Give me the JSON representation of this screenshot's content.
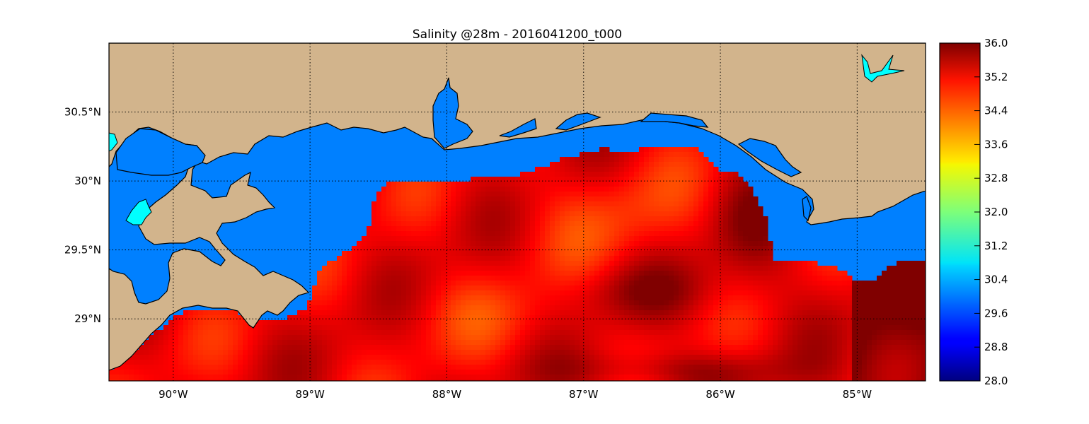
{
  "title": "Salinity @28m - 2016041200_t000",
  "map": {
    "lon_range": [
      -90.47,
      -84.5
    ],
    "lat_range": [
      28.55,
      31.0
    ],
    "gridlines": "dotted",
    "lon_ticks": [
      {
        "value": -90,
        "label": "90°W"
      },
      {
        "value": -89,
        "label": "89°W"
      },
      {
        "value": -88,
        "label": "88°W"
      },
      {
        "value": -87,
        "label": "87°W"
      },
      {
        "value": -86,
        "label": "86°W"
      },
      {
        "value": -85,
        "label": "85°W"
      }
    ],
    "lat_ticks": [
      {
        "value": 30.5,
        "label": "30.5°N"
      },
      {
        "value": 30.0,
        "label": "30°N"
      },
      {
        "value": 29.5,
        "label": "29.5°N"
      },
      {
        "value": 29.0,
        "label": "29°N"
      }
    ],
    "colors": {
      "land": "#d2b48c",
      "masked_ocean": "#0080ff",
      "inland_water": "#00ffff",
      "coast_line": "#000000"
    }
  },
  "colorbar": {
    "colormap": "jet",
    "min": 28.0,
    "max": 36.0,
    "tick_labels": [
      "36.0",
      "35.2",
      "34.4",
      "33.6",
      "32.8",
      "32.0",
      "31.2",
      "30.4",
      "29.6",
      "28.8",
      "28.0"
    ]
  }
}
